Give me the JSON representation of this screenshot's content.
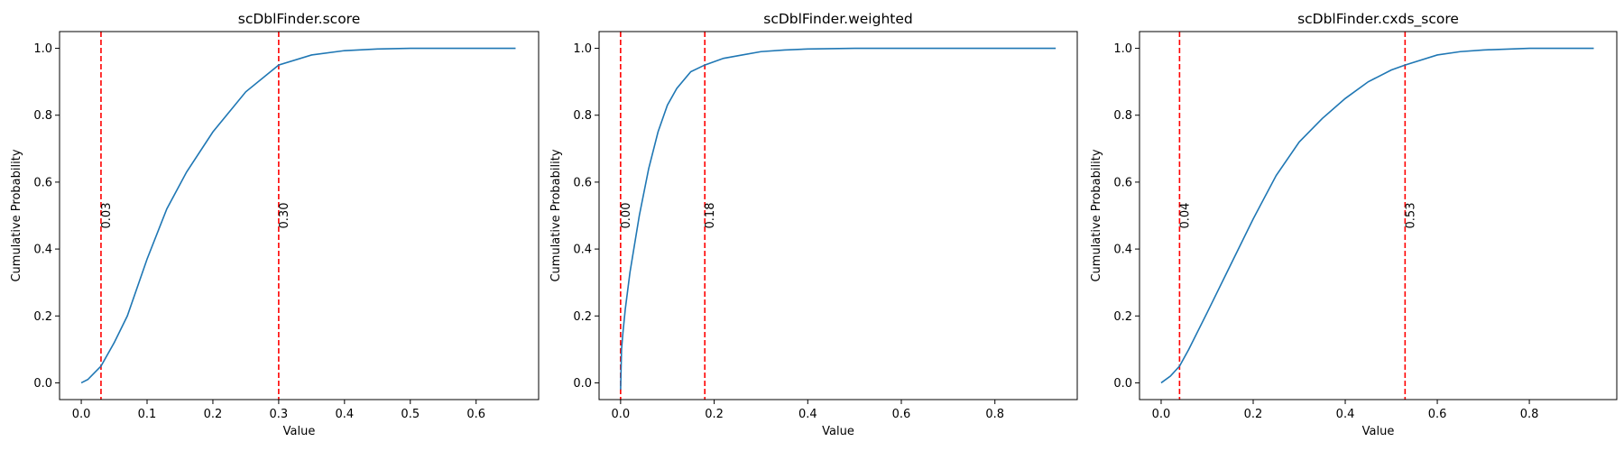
{
  "colors": {
    "line": "#1f77b4",
    "threshold": "#ff0000"
  },
  "chart_data": [
    {
      "type": "line",
      "title": "scDblFinder.score",
      "xlabel": "Value",
      "ylabel": "Cumulative Probability",
      "xlim": [
        -0.033,
        0.695
      ],
      "ylim": [
        -0.05,
        1.05
      ],
      "xticks": [
        0.0,
        0.1,
        0.2,
        0.3,
        0.4,
        0.5,
        0.6
      ],
      "xtick_labels": [
        "0.0",
        "0.1",
        "0.2",
        "0.3",
        "0.4",
        "0.5",
        "0.6"
      ],
      "yticks": [
        0.0,
        0.2,
        0.4,
        0.6,
        0.8,
        1.0
      ],
      "ytick_labels": [
        "0.0",
        "0.2",
        "0.4",
        "0.6",
        "0.8",
        "1.0"
      ],
      "grid": false,
      "x": [
        0.0,
        0.01,
        0.02,
        0.03,
        0.05,
        0.07,
        0.1,
        0.13,
        0.16,
        0.2,
        0.25,
        0.3,
        0.35,
        0.4,
        0.45,
        0.5,
        0.55,
        0.6,
        0.66
      ],
      "y": [
        0.0,
        0.01,
        0.03,
        0.05,
        0.12,
        0.2,
        0.37,
        0.52,
        0.63,
        0.75,
        0.87,
        0.95,
        0.98,
        0.993,
        0.998,
        1.0,
        1.0,
        1.0,
        1.0
      ],
      "thresholds": [
        {
          "x": 0.03,
          "label": "0.03"
        },
        {
          "x": 0.3,
          "label": "0.30"
        }
      ]
    },
    {
      "type": "line",
      "title": "scDblFinder.weighted",
      "xlabel": "Value",
      "ylabel": "Cumulative Probability",
      "xlim": [
        -0.046,
        0.976
      ],
      "ylim": [
        -0.05,
        1.05
      ],
      "xticks": [
        0.0,
        0.2,
        0.4,
        0.6,
        0.8
      ],
      "xtick_labels": [
        "0.0",
        "0.2",
        "0.4",
        "0.6",
        "0.8"
      ],
      "yticks": [
        0.0,
        0.2,
        0.4,
        0.6,
        0.8,
        1.0
      ],
      "ytick_labels": [
        "0.0",
        "0.2",
        "0.4",
        "0.6",
        "0.8",
        "1.0"
      ],
      "grid": false,
      "x": [
        0.0,
        0.002,
        0.005,
        0.01,
        0.02,
        0.04,
        0.06,
        0.08,
        0.1,
        0.12,
        0.15,
        0.18,
        0.22,
        0.26,
        0.3,
        0.35,
        0.4,
        0.5,
        0.6,
        0.7,
        0.8,
        0.93
      ],
      "y": [
        -0.02,
        0.1,
        0.15,
        0.22,
        0.33,
        0.5,
        0.64,
        0.75,
        0.83,
        0.88,
        0.93,
        0.95,
        0.97,
        0.98,
        0.99,
        0.995,
        0.998,
        1.0,
        1.0,
        1.0,
        1.0,
        1.0
      ],
      "thresholds": [
        {
          "x": 0.0,
          "label": "0.00"
        },
        {
          "x": 0.18,
          "label": "0.18"
        }
      ]
    },
    {
      "type": "line",
      "title": "scDblFinder.cxds_score",
      "xlabel": "Value",
      "ylabel": "Cumulative Probability",
      "xlim": [
        -0.047,
        0.99
      ],
      "ylim": [
        -0.05,
        1.05
      ],
      "xticks": [
        0.0,
        0.2,
        0.4,
        0.6,
        0.8
      ],
      "xtick_labels": [
        "0.0",
        "0.2",
        "0.4",
        "0.6",
        "0.8"
      ],
      "yticks": [
        0.0,
        0.2,
        0.4,
        0.6,
        0.8,
        1.0
      ],
      "ytick_labels": [
        "0.0",
        "0.2",
        "0.4",
        "0.6",
        "0.8",
        "1.0"
      ],
      "grid": false,
      "x": [
        0.0,
        0.02,
        0.04,
        0.06,
        0.1,
        0.15,
        0.2,
        0.25,
        0.3,
        0.35,
        0.4,
        0.45,
        0.5,
        0.53,
        0.6,
        0.65,
        0.7,
        0.8,
        0.94
      ],
      "y": [
        0.0,
        0.02,
        0.05,
        0.1,
        0.21,
        0.35,
        0.49,
        0.62,
        0.72,
        0.79,
        0.85,
        0.9,
        0.935,
        0.95,
        0.98,
        0.99,
        0.995,
        1.0,
        1.0
      ],
      "thresholds": [
        {
          "x": 0.04,
          "label": "0.04"
        },
        {
          "x": 0.53,
          "label": "0.53"
        }
      ]
    }
  ]
}
